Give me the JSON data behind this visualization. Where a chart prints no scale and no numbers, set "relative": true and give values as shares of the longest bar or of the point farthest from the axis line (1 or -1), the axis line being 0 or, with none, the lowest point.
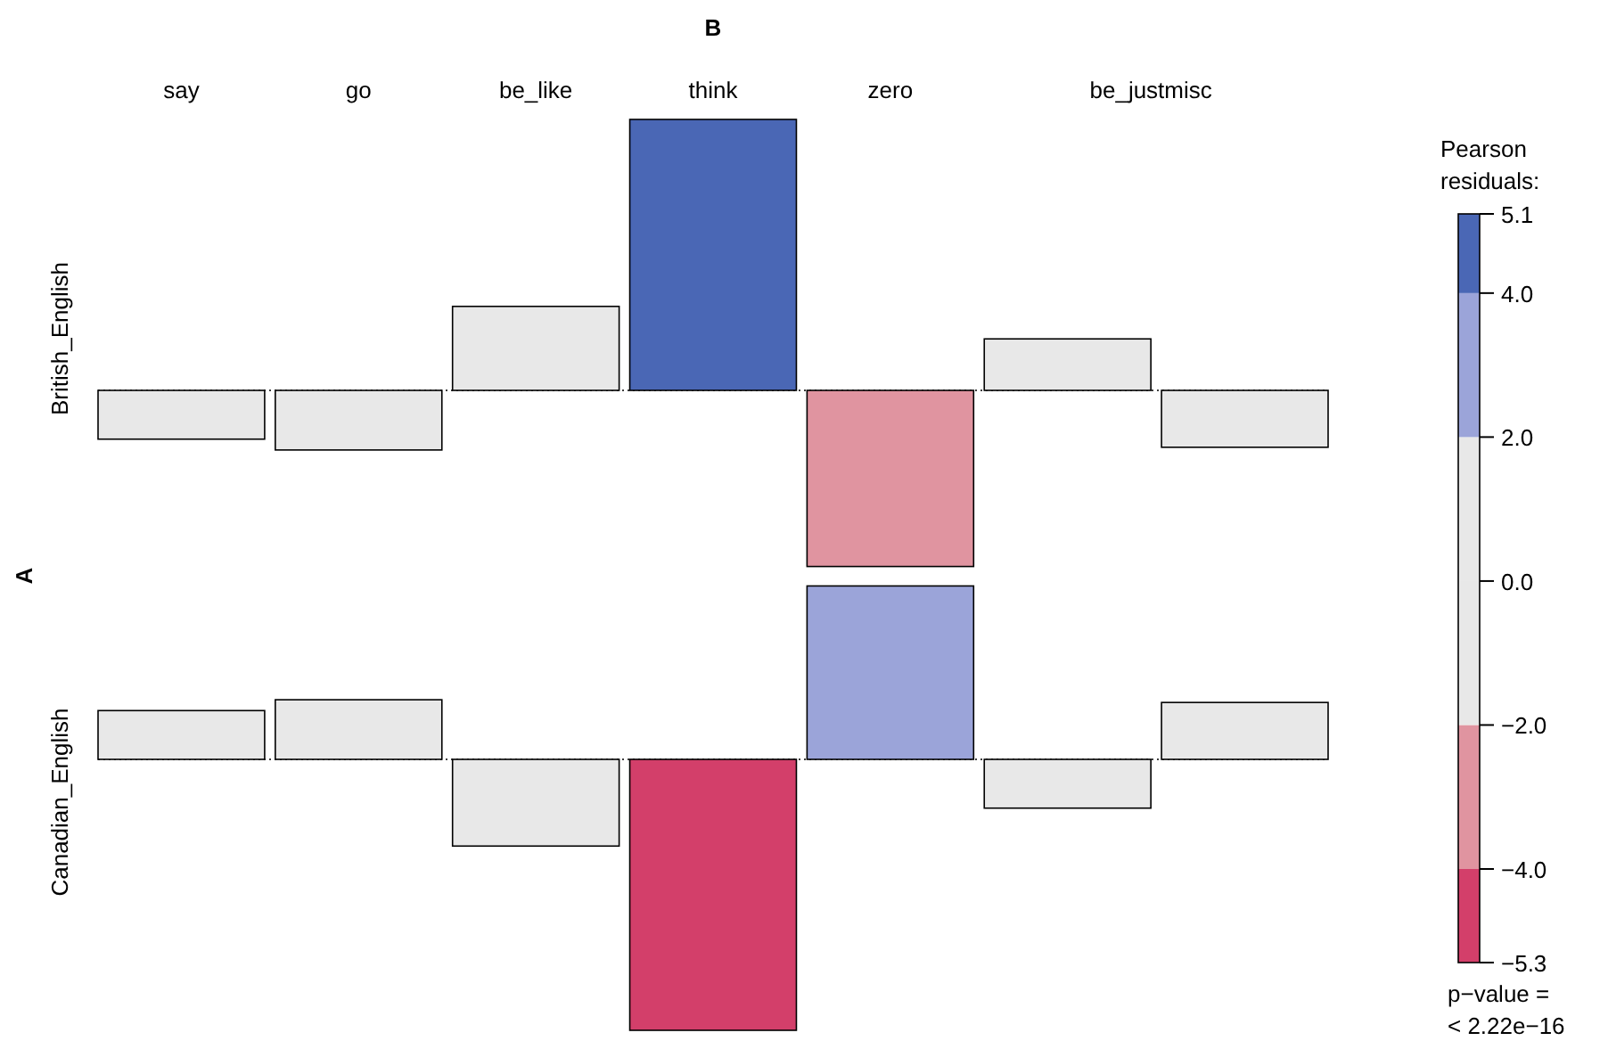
{
  "chart_data": [
    {
      "type": "bar",
      "title": "B",
      "ylabel": "British_English",
      "relative": true,
      "categories": [
        "say",
        "go",
        "be_like",
        "think",
        "zero",
        "be_justmisc",
        null
      ],
      "values": [
        -0.18,
        -0.22,
        0.31,
        1,
        -0.65,
        0.19,
        -0.21
      ],
      "colors": [
        "#e8e8e8",
        "#e8e8e8",
        "#e8e8e8",
        "#4a67b5",
        "#e094a0",
        "#e8e8e8",
        "#e8e8e8"
      ],
      "ref_lines": [
        {
          "axis": "y",
          "value": 0,
          "line_style": "dotted"
        }
      ],
      "annotations": [
        "A"
      ],
      "clabel": "Pearson residuals:",
      "clim": [
        -5.3,
        5.1
      ],
      "cticks": [
        5.1,
        {
          "value": 4,
          "label": "4.0"
        },
        {
          "value": 2,
          "label": "2.0"
        },
        {
          "value": 0,
          "label": "0.0"
        },
        {
          "value": -2,
          "label": "−2.0"
        },
        {
          "value": -4,
          "label": "−4.0"
        },
        {
          "value": -5.3,
          "label": "−5.3"
        }
      ]
    },
    {
      "type": "bar",
      "ylabel": "Canadian_English",
      "relative": true,
      "ref_lines": [
        {
          "axis": "y",
          "value": 0,
          "line_style": "dotted"
        }
      ],
      "categories": [
        null,
        null,
        null,
        null,
        null,
        null,
        null
      ],
      "values": [
        0.18,
        0.22,
        -0.32,
        -1,
        0.64,
        -0.18,
        0.21
      ],
      "colors": [
        "#e8e8e8",
        "#e8e8e8",
        "#e8e8e8",
        "#d33f6a",
        "#9ba4d9",
        "#e8e8e8",
        "#e8e8e8"
      ],
      "annotations": [
        "p−value =",
        "< 2.22e−16"
      ]
    }
  ]
}
